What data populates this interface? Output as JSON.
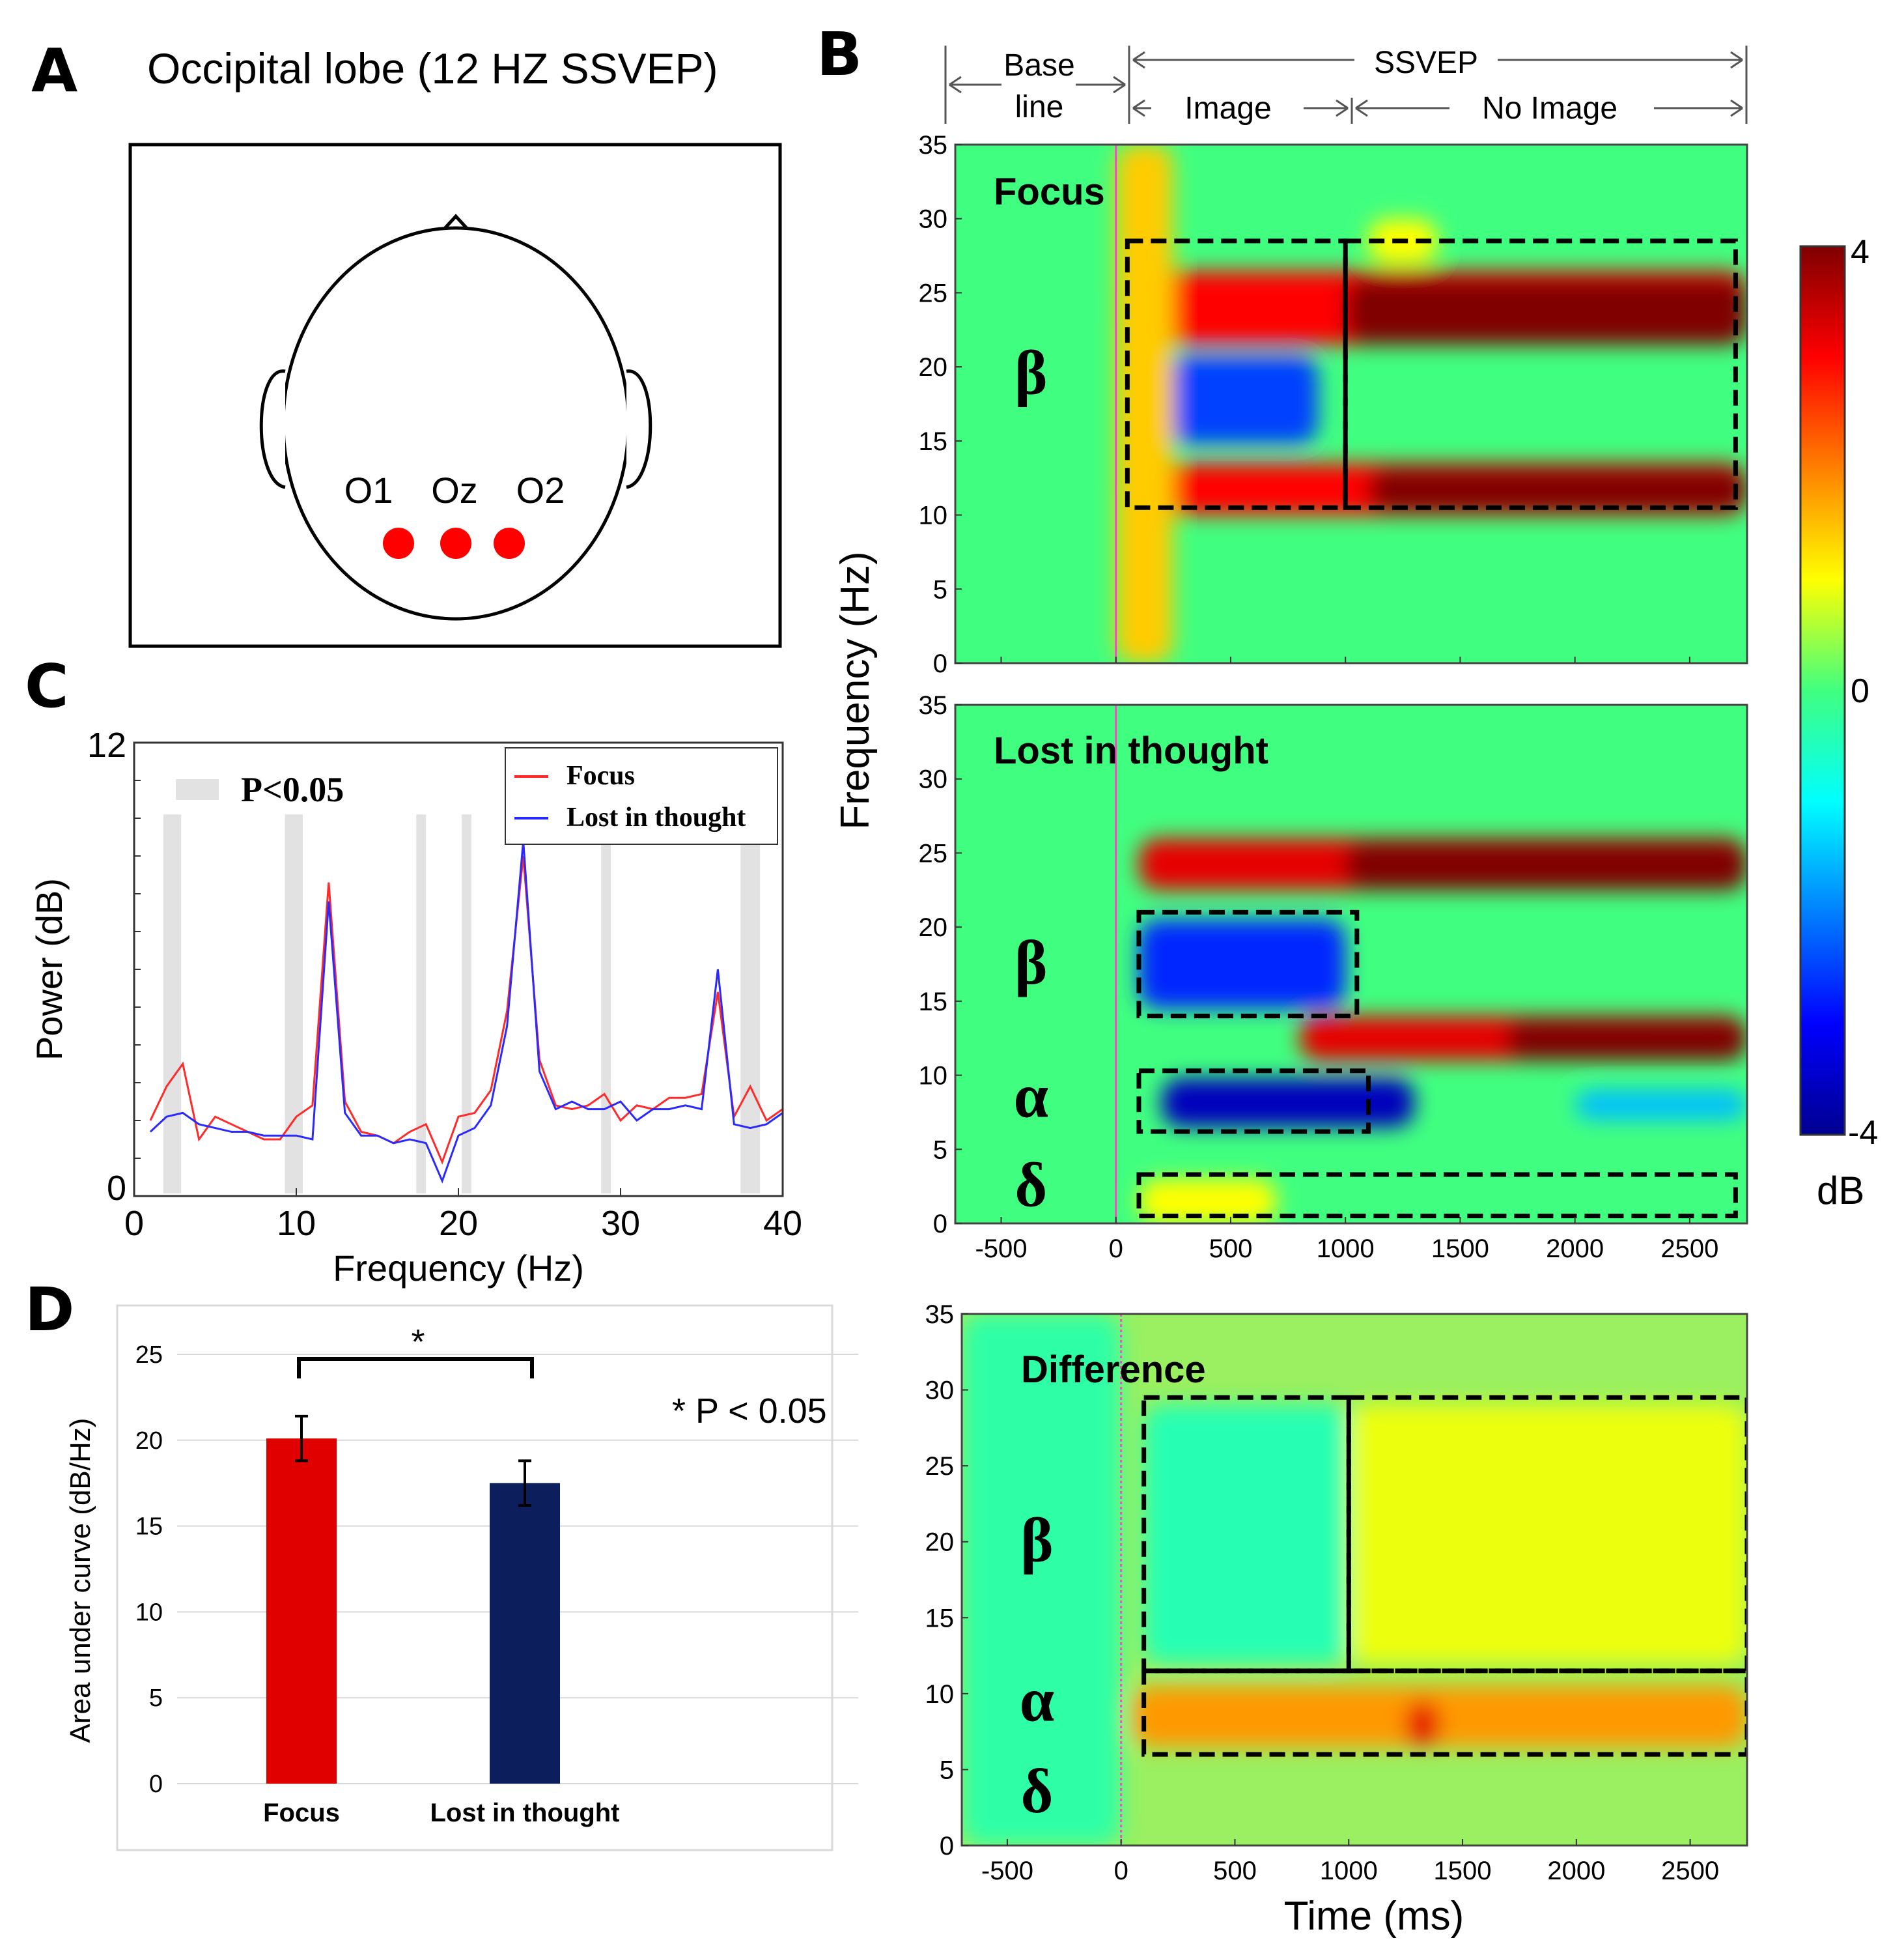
{
  "panels": {
    "A": {
      "letter": "A",
      "title": "Occipital lobe (12 HZ SSVEP)",
      "electrodes": [
        "O1",
        "Oz",
        "O2"
      ],
      "electrode_color": "#ff0000"
    },
    "B": {
      "letter": "B",
      "header": {
        "baseline_top": "Base",
        "baseline_bottom": "line",
        "ssvep": "SSVEP",
        "image": "Image",
        "no_image": "No Image"
      },
      "ylabel": "Frequency (Hz)",
      "xlabel": "Time (ms)",
      "colorbar": {
        "max_label": "4",
        "zero_label": "0",
        "min_label": "-4",
        "unit": "dB"
      },
      "greek": {
        "beta": "β",
        "alpha": "α",
        "delta": "δ"
      }
    },
    "C": {
      "letter": "C"
    },
    "D": {
      "letter": "D",
      "significance_star": "*",
      "significance_note": "* P < 0.05"
    }
  },
  "colors": {
    "focus": "#ff2a2a",
    "lost": "#2a2aff",
    "bar_focus": "#e00000",
    "bar_lost": "#0c1f5c",
    "sig_band": "#e2e2e2"
  },
  "chart_data": [
    {
      "id": "C",
      "type": "line",
      "xlabel": "Frequency (Hz)",
      "ylabel": "Power (dB)",
      "xlim": [
        0,
        40
      ],
      "ylim": [
        0,
        12
      ],
      "xticks": [
        0,
        10,
        20,
        30,
        40
      ],
      "yticks": [
        0,
        12
      ],
      "legend": {
        "position": "top-right",
        "sig_label": "P<0.05"
      },
      "sig_bands": [
        [
          1.8,
          2.9
        ],
        [
          9.3,
          10.4
        ],
        [
          17.4,
          18.0
        ],
        [
          20.2,
          20.8
        ],
        [
          28.8,
          29.4
        ],
        [
          37.4,
          38.6
        ]
      ],
      "x": [
        1,
        2,
        3,
        4,
        5,
        6,
        7,
        8,
        9,
        10,
        11,
        12,
        13,
        14,
        15,
        16,
        17,
        18,
        19,
        20,
        21,
        22,
        23,
        24,
        25,
        26,
        27,
        28,
        29,
        30,
        31,
        32,
        33,
        34,
        35,
        36,
        37,
        38,
        39,
        40
      ],
      "series": [
        {
          "name": "Focus",
          "values": [
            2.0,
            2.9,
            3.5,
            1.5,
            2.1,
            1.9,
            1.7,
            1.5,
            1.5,
            2.1,
            2.4,
            8.3,
            2.5,
            1.7,
            1.6,
            1.4,
            1.7,
            1.9,
            0.9,
            2.1,
            2.2,
            2.8,
            4.9,
            9.0,
            3.6,
            2.4,
            2.3,
            2.4,
            2.7,
            2.0,
            2.4,
            2.3,
            2.6,
            2.6,
            2.7,
            5.4,
            2.1,
            2.9,
            2.0,
            2.3
          ]
        },
        {
          "name": "Lost in thought",
          "values": [
            1.7,
            2.1,
            2.2,
            1.9,
            1.8,
            1.7,
            1.7,
            1.6,
            1.6,
            1.6,
            1.5,
            7.8,
            2.2,
            1.6,
            1.6,
            1.4,
            1.5,
            1.4,
            0.4,
            1.6,
            1.8,
            2.4,
            4.5,
            9.4,
            3.3,
            2.3,
            2.5,
            2.3,
            2.3,
            2.5,
            2.0,
            2.3,
            2.3,
            2.4,
            2.3,
            6.0,
            1.9,
            1.8,
            1.9,
            2.2
          ]
        }
      ]
    },
    {
      "id": "D",
      "type": "bar",
      "ylabel": "Area under curve (dB/Hz)",
      "categories": [
        "Focus",
        "Lost in thought"
      ],
      "values": [
        20.1,
        17.5
      ],
      "errors": [
        1.3,
        1.3
      ],
      "ylim": [
        0,
        25
      ],
      "yticks": [
        0,
        5,
        10,
        15,
        20,
        25
      ]
    },
    {
      "id": "B",
      "type": "heatmap",
      "xlim": [
        -700,
        2750
      ],
      "ylim": [
        0,
        35
      ],
      "xticks": [
        -500,
        0,
        500,
        1000,
        1500,
        2000,
        2500
      ],
      "yticks": [
        0,
        5,
        10,
        15,
        20,
        25,
        30,
        35
      ],
      "colorbar_range": [
        -4,
        4
      ],
      "panels": [
        {
          "title": "Focus",
          "blobs": [
            {
              "t0": 0,
              "t1": 2750,
              "f0": 21.5,
              "f1": 26.5,
              "v": 3.0
            },
            {
              "t0": 1000,
              "t1": 2750,
              "f0": 21.5,
              "f1": 26.0,
              "v": 5.0
            },
            {
              "t0": 0,
              "t1": 2750,
              "f0": 10.0,
              "f1": 13.5,
              "v": 3.0
            },
            {
              "t0": 1100,
              "t1": 2750,
              "f0": 10.2,
              "f1": 13.2,
              "v": 5.0
            },
            {
              "t0": 230,
              "t1": 880,
              "f0": 14.8,
              "f1": 20.8,
              "v": -2.5
            },
            {
              "t0": 0,
              "t1": 250,
              "f0": 0,
              "f1": 35,
              "v": 1.4
            },
            {
              "t0": 1100,
              "t1": 1400,
              "f0": 27.0,
              "f1": 30.0,
              "v": 1.0
            }
          ],
          "boxes": [
            {
              "t0": 50,
              "t1": 1000,
              "f0": 10.5,
              "f1": 28.5
            },
            {
              "t0": 1000,
              "t1": 2700,
              "f0": 10.5,
              "f1": 28.5
            }
          ],
          "greek": [
            {
              "sym": "beta",
              "f": 19.5
            }
          ]
        },
        {
          "title": "Lost in thought",
          "blobs": [
            {
              "t0": 100,
              "t1": 2750,
              "f0": 22.5,
              "f1": 26.0,
              "v": 3.2
            },
            {
              "t0": 1000,
              "t1": 2750,
              "f0": 22.5,
              "f1": 25.8,
              "v": 5.0
            },
            {
              "t0": 800,
              "t1": 2750,
              "f0": 11.0,
              "f1": 14.0,
              "v": 3.2
            },
            {
              "t0": 1700,
              "t1": 2750,
              "f0": 11.0,
              "f1": 13.8,
              "v": 4.5
            },
            {
              "t0": 100,
              "t1": 1000,
              "f0": 14.5,
              "f1": 20.5,
              "v": -2.7
            },
            {
              "t0": 200,
              "t1": 1300,
              "f0": 6.5,
              "f1": 9.8,
              "v": -3.6
            },
            {
              "t0": 2000,
              "t1": 2750,
              "f0": 7.0,
              "f1": 9.0,
              "v": -1.5
            },
            {
              "t0": 100,
              "t1": 700,
              "f0": 0.0,
              "f1": 3.0,
              "v": 1.0
            }
          ],
          "boxes": [
            {
              "t0": 100,
              "t1": 1050,
              "f0": 14.0,
              "f1": 21.0
            },
            {
              "t0": 100,
              "t1": 1100,
              "f0": 6.2,
              "f1": 10.3
            },
            {
              "t0": 100,
              "t1": 2700,
              "f0": 0.5,
              "f1": 3.3
            }
          ],
          "greek": [
            {
              "sym": "beta",
              "f": 17.5
            },
            {
              "sym": "alpha",
              "f": 8.5
            },
            {
              "sym": "delta",
              "f": 2.5
            }
          ]
        },
        {
          "title": "Difference",
          "blobs": [
            {
              "t0": 50,
              "t1": 2750,
              "f0": 6.5,
              "f1": 10.5,
              "v": 1.8
            },
            {
              "t0": 1250,
              "t1": 1400,
              "f0": 6.5,
              "f1": 9.5,
              "v": 3.2
            },
            {
              "t0": 1000,
              "t1": 2750,
              "f0": 12.0,
              "f1": 29.0,
              "v": 0.9
            },
            {
              "t0": 100,
              "t1": 1000,
              "f0": 12.0,
              "f1": 29.0,
              "v": -0.4
            },
            {
              "t0": -700,
              "t1": 0,
              "f0": 0,
              "f1": 35,
              "v": -0.3
            }
          ],
          "boxes": [
            {
              "t0": 100,
              "t1": 1000,
              "f0": 11.5,
              "f1": 29.5
            },
            {
              "t0": 1000,
              "t1": 2750,
              "f0": 11.5,
              "f1": 29.5
            },
            {
              "t0": 100,
              "t1": 2750,
              "f0": 6.0,
              "f1": 11.5
            }
          ],
          "greek": [
            {
              "sym": "beta",
              "f": 20.0
            },
            {
              "sym": "alpha",
              "f": 9.5
            },
            {
              "sym": "delta",
              "f": 3.5
            }
          ]
        }
      ]
    }
  ]
}
